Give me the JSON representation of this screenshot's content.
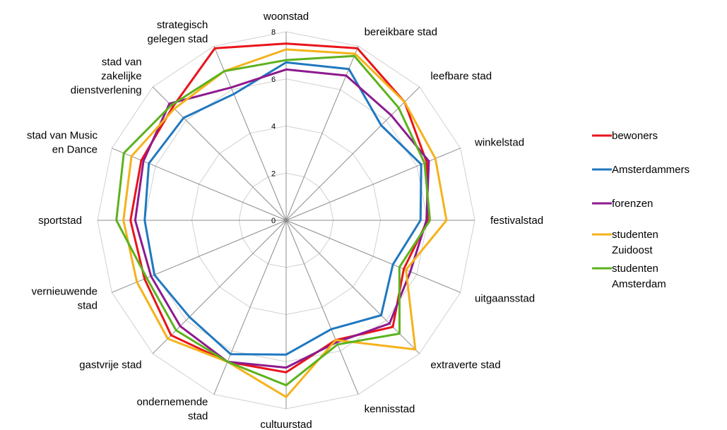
{
  "chart_data": {
    "type": "radar",
    "categories": [
      "woonstad",
      "bereikbare stad",
      "leefbare stad",
      "winkelstad",
      "festivalstad",
      "uitgaansstad",
      "extraverte stad",
      "kennisstad",
      "cultuurstad",
      "ondernemende stad",
      "gastvrije stad",
      "vernieuwende stad",
      "sportstad",
      "stad van Music en Dance",
      "stad van zakelijke dienstverlening",
      "strategisch gelegen stad"
    ],
    "ylim": [
      0,
      8
    ],
    "yticks": [
      0,
      2,
      4,
      6,
      8
    ],
    "grid": true,
    "legend": "right",
    "series": [
      {
        "name": "bewoners",
        "color": "#e8141a",
        "values": [
          7.5,
          7.9,
          7.1,
          6.45,
          6.0,
          5.4,
          6.4,
          5.5,
          6.45,
          6.5,
          6.9,
          6.5,
          6.6,
          6.65,
          6.8,
          7.9
        ]
      },
      {
        "name": "Amsterdammers",
        "color": "#1f78c0",
        "values": [
          6.7,
          6.95,
          5.7,
          6.2,
          5.7,
          4.9,
          5.7,
          5.0,
          5.7,
          6.15,
          5.8,
          6.05,
          6.0,
          6.3,
          6.15,
          5.8
        ]
      },
      {
        "name": "forenzen",
        "color": "#8e1a8e",
        "values": [
          6.4,
          6.65,
          6.3,
          6.55,
          5.95,
          5.7,
          6.2,
          5.6,
          6.25,
          6.5,
          6.35,
          6.2,
          6.4,
          6.55,
          7.0,
          6.1
        ]
      },
      {
        "name": "studenten Zuidoost",
        "color": "#f5b21b",
        "values": [
          7.25,
          7.65,
          7.1,
          6.85,
          6.8,
          5.5,
          7.75,
          5.5,
          7.5,
          6.5,
          7.1,
          6.85,
          6.9,
          7.1,
          6.7,
          6.85
        ]
      },
      {
        "name": "studenten Amsterdam",
        "color": "#5cb21e",
        "values": [
          6.8,
          7.55,
          6.75,
          6.35,
          6.1,
          5.2,
          6.8,
          5.7,
          7.0,
          6.5,
          6.6,
          6.4,
          7.2,
          7.45,
          6.9,
          6.85
        ]
      }
    ]
  }
}
